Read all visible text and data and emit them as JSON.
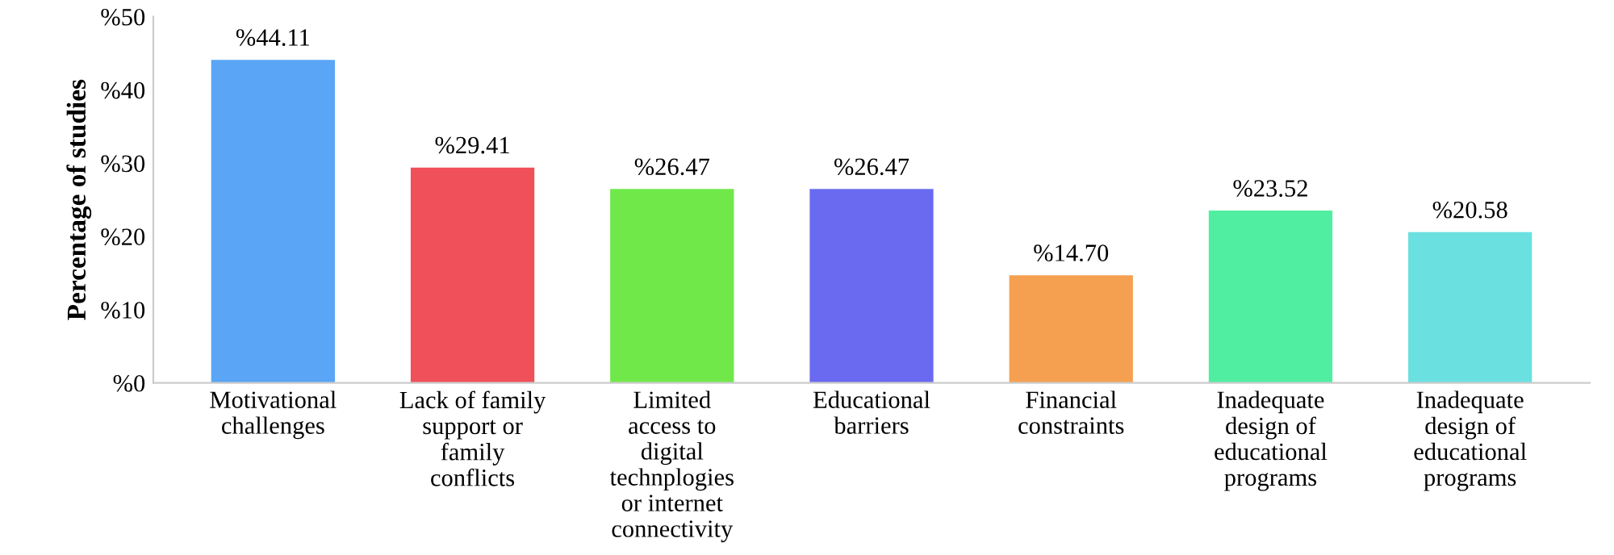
{
  "chart_data": {
    "type": "bar",
    "ylabel": "Percentage of studies",
    "categories": [
      "Motivational\nchallenges",
      "Lack of family\nsupport or\nfamily\nconflicts",
      "Limited\naccess to\ndigital\ntechnplogies\nor internet\nconnectivity",
      "Educational\nbarriers",
      "Financial\nconstraints",
      "Inadequate\ndesign of\neducational\nprograms",
      "Inadequate\ndesign of\neducational\nprograms"
    ],
    "values": [
      44.11,
      29.41,
      26.47,
      26.47,
      14.7,
      23.52,
      20.58
    ],
    "value_labels": [
      "%44.11",
      "%29.41",
      "%26.47",
      "%26.47",
      "%14.70",
      "%23.52",
      "%20.58"
    ],
    "colors": [
      "#5aa5f5",
      "#f0505a",
      "#70e84a",
      "#6a6af0",
      "#f5a050",
      "#50eea0",
      "#6ae0e0"
    ],
    "ylim": [
      0,
      50
    ],
    "yticks": [
      {
        "value": 0,
        "label": "%0"
      },
      {
        "value": 10,
        "label": "%10"
      },
      {
        "value": 20,
        "label": "%20"
      },
      {
        "value": 30,
        "label": "%30"
      },
      {
        "value": 40,
        "label": "%40"
      },
      {
        "value": 50,
        "label": "%50"
      }
    ],
    "grid": false,
    "legend": false
  }
}
